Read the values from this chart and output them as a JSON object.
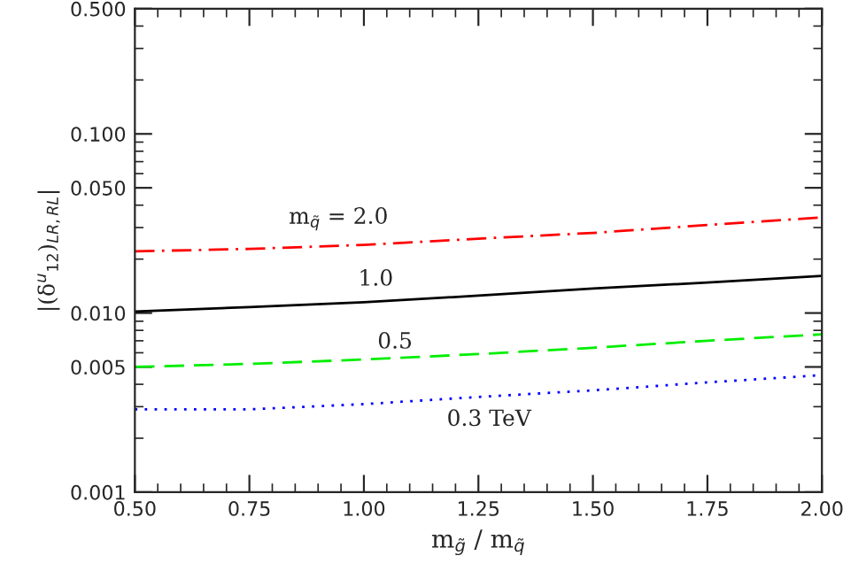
{
  "chart_data": {
    "type": "line",
    "xlabel": "m$_{g̃}$ / m$_{q̃}$",
    "ylabel": "|(δ$^{u}$$_{12}$)$_{LR,RL}$|",
    "x": [
      0.5,
      0.75,
      1.0,
      1.25,
      1.5,
      1.75,
      2.0
    ],
    "series": [
      {
        "color": "#ff0000",
        "line_style": "dashdot",
        "values": [
          0.0221,
          0.0228,
          0.024,
          0.026,
          0.028,
          0.031,
          0.0342
        ]
      },
      {
        "color": "#000000",
        "line_style": "solid",
        "values": [
          0.0102,
          0.0108,
          0.0115,
          0.0125,
          0.0137,
          0.0148,
          0.0161
        ]
      },
      {
        "color": "#00ee00",
        "line_style": "dashed",
        "values": [
          0.005,
          0.0052,
          0.0055,
          0.0059,
          0.0064,
          0.007,
          0.0076
        ]
      },
      {
        "color": "#0000ff",
        "line_style": "dotted",
        "values": [
          0.0029,
          0.0029,
          0.0031,
          0.0034,
          0.0037,
          0.0041,
          0.0045
        ]
      }
    ],
    "annotations": [
      "m$_{q̃}$ = 2.0",
      "1.0",
      "0.5",
      "0.3 TeV"
    ],
    "log": "y",
    "xlim": [
      0.5,
      2.0
    ],
    "xticks": [
      {
        "value": 0.5,
        "label": "0.50"
      },
      {
        "value": 0.75,
        "label": "0.75"
      },
      {
        "value": 1.0,
        "label": "1.00"
      },
      {
        "value": 1.25,
        "label": "1.25"
      },
      {
        "value": 1.5,
        "label": "1.50"
      },
      {
        "value": 1.75,
        "label": "1.75"
      },
      {
        "value": 2.0,
        "label": "2.00"
      }
    ],
    "ylim": [
      0.001,
      0.5
    ],
    "yticks": [
      0.001,
      0.005,
      {
        "value": 0.01,
        "label": "0.010"
      },
      {
        "value": 0.05,
        "label": "0.050"
      },
      {
        "value": 0.1,
        "label": "0.100"
      },
      {
        "value": 0.5,
        "label": "0.500"
      }
    ],
    "grid": false,
    "legend": false
  }
}
